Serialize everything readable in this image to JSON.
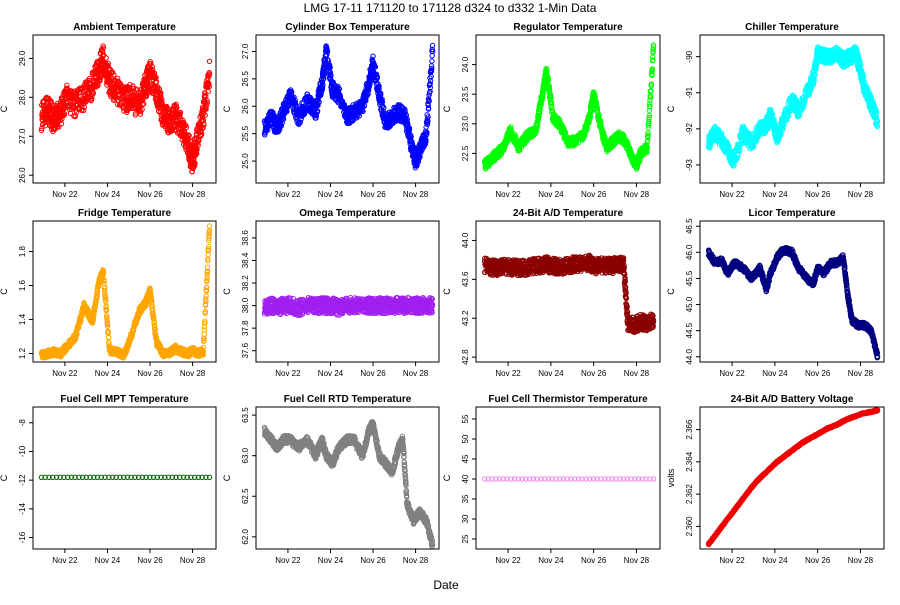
{
  "figure": {
    "title": "LMG   17-11     171120 to 171128     d324 to d332   1-Min Data",
    "xlabel": "Date"
  },
  "chart_data": [
    {
      "type": "scatter",
      "title": "Ambient Temperature",
      "ylabel": "C",
      "color": "#ff0000",
      "ylim": [
        25.8,
        29.6
      ],
      "yticks": [
        "26.0",
        "27.0",
        "28.0",
        "29.0"
      ],
      "yticks_values": [
        26,
        27,
        28,
        29
      ],
      "xticks": [
        "Nov 22",
        "Nov 24",
        "Nov 26",
        "Nov 28"
      ],
      "xticks_days": [
        22,
        24,
        26,
        28
      ],
      "xlim_days": [
        20.5,
        29.1
      ],
      "x_days": [
        20.9,
        21.2,
        21.5,
        21.8,
        22.1,
        22.5,
        22.9,
        23.3,
        23.6,
        23.8,
        24.1,
        24.4,
        24.8,
        25.1,
        25.5,
        25.8,
        26.0,
        26.3,
        26.6,
        26.9,
        27.2,
        27.5,
        27.8,
        28.0,
        28.2,
        28.5,
        28.8
      ],
      "values": [
        27.5,
        27.7,
        27.4,
        27.6,
        28.0,
        27.8,
        28.0,
        28.3,
        28.7,
        29.0,
        28.4,
        28.2,
        27.9,
        28.0,
        27.8,
        28.3,
        28.6,
        28.2,
        27.6,
        27.4,
        27.5,
        27.2,
        26.8,
        26.3,
        26.9,
        27.5,
        28.6
      ],
      "spread": 0.35
    },
    {
      "type": "scatter",
      "title": "Cylinder Box Temperature",
      "ylabel": "C",
      "color": "#0000ff",
      "ylim": [
        24.6,
        27.3
      ],
      "yticks": [
        "25.0",
        "25.5",
        "26.0",
        "26.5",
        "27.0"
      ],
      "yticks_values": [
        25,
        25.5,
        26,
        26.5,
        27
      ],
      "xticks": [
        "Nov 22",
        "Nov 24",
        "Nov 26",
        "Nov 28"
      ],
      "xticks_days": [
        22,
        24,
        26,
        28
      ],
      "xlim_days": [
        20.5,
        29.1
      ],
      "x_days": [
        20.9,
        21.2,
        21.5,
        21.8,
        22.1,
        22.5,
        22.9,
        23.3,
        23.6,
        23.8,
        24.1,
        24.4,
        24.8,
        25.1,
        25.5,
        25.8,
        26.0,
        26.3,
        26.6,
        26.9,
        27.2,
        27.5,
        27.8,
        28.0,
        28.2,
        28.5,
        28.8
      ],
      "values": [
        25.6,
        25.8,
        25.6,
        25.9,
        26.2,
        25.8,
        26.1,
        25.9,
        26.4,
        27.0,
        26.3,
        26.2,
        25.8,
        25.9,
        26.0,
        26.4,
        26.8,
        26.2,
        25.7,
        25.8,
        25.9,
        25.8,
        25.3,
        25.0,
        25.2,
        25.5,
        27.0
      ],
      "spread": 0.15
    },
    {
      "type": "scatter",
      "title": "Regulator Temperature",
      "ylabel": "C",
      "color": "#00ff00",
      "ylim": [
        22.0,
        24.5
      ],
      "yticks": [
        "22.5",
        "23.0",
        "23.5",
        "24.0"
      ],
      "yticks_values": [
        22.5,
        23,
        23.5,
        24
      ],
      "xticks": [
        "Nov 22",
        "Nov 24",
        "Nov 26",
        "Nov 28"
      ],
      "xticks_days": [
        22,
        24,
        26,
        28
      ],
      "xlim_days": [
        20.5,
        29.1
      ],
      "x_days": [
        20.9,
        21.2,
        21.5,
        21.8,
        22.1,
        22.5,
        22.9,
        23.3,
        23.6,
        23.8,
        24.1,
        24.4,
        24.8,
        25.1,
        25.5,
        25.8,
        26.0,
        26.3,
        26.6,
        26.9,
        27.2,
        27.5,
        27.8,
        28.0,
        28.2,
        28.5,
        28.8
      ],
      "values": [
        22.3,
        22.4,
        22.5,
        22.6,
        22.9,
        22.6,
        22.8,
        22.9,
        23.5,
        23.9,
        23.1,
        23.0,
        22.7,
        22.7,
        22.8,
        23.1,
        23.5,
        23.0,
        22.6,
        22.7,
        22.8,
        22.7,
        22.4,
        22.3,
        22.5,
        22.6,
        24.3
      ],
      "spread": 0.08
    },
    {
      "type": "scatter",
      "title": "Chiller Temperature",
      "ylabel": "C",
      "color": "#00ffff",
      "ylim": [
        -93.5,
        -89.4
      ],
      "yticks": [
        "-93",
        "-92",
        "-91",
        "-90"
      ],
      "yticks_values": [
        -93,
        -92,
        -91,
        -90
      ],
      "xticks": [
        "Nov 22",
        "Nov 24",
        "Nov 26",
        "Nov 28"
      ],
      "xticks_days": [
        22,
        24,
        26,
        28
      ],
      "xlim_days": [
        20.5,
        29.1
      ],
      "x_days": [
        20.9,
        21.2,
        21.5,
        21.8,
        22.1,
        22.5,
        22.9,
        23.3,
        23.6,
        23.8,
        24.1,
        24.4,
        24.8,
        25.1,
        25.5,
        25.8,
        26.0,
        26.3,
        26.6,
        26.9,
        27.2,
        27.5,
        27.8,
        28.0,
        28.2,
        28.5,
        28.8
      ],
      "values": [
        -92.4,
        -92.1,
        -92.3,
        -92.6,
        -92.9,
        -92.1,
        -92.4,
        -92.0,
        -91.9,
        -91.6,
        -92.2,
        -91.8,
        -91.2,
        -91.5,
        -91.0,
        -90.6,
        -89.9,
        -90.0,
        -90.0,
        -89.9,
        -90.1,
        -90.0,
        -89.9,
        -90.4,
        -90.9,
        -91.3,
        -91.8
      ],
      "spread": 0.2
    },
    {
      "type": "scatter",
      "title": "Fridge Temperature",
      "ylabel": "C",
      "color": "#ffa500",
      "ylim": [
        1.15,
        1.98
      ],
      "yticks": [
        "1.2",
        "1.4",
        "1.6",
        "1.8"
      ],
      "yticks_values": [
        1.2,
        1.4,
        1.6,
        1.8
      ],
      "xticks": [
        "Nov 22",
        "Nov 24",
        "Nov 26",
        "Nov 28"
      ],
      "xticks_days": [
        22,
        24,
        26,
        28
      ],
      "xlim_days": [
        20.5,
        29.1
      ],
      "x_days": [
        20.9,
        21.2,
        21.5,
        21.8,
        22.1,
        22.5,
        22.9,
        23.3,
        23.6,
        23.8,
        24.1,
        24.4,
        24.8,
        25.1,
        25.5,
        25.8,
        26.0,
        26.3,
        26.6,
        26.9,
        27.2,
        27.5,
        27.8,
        28.0,
        28.2,
        28.5,
        28.8
      ],
      "values": [
        1.19,
        1.2,
        1.21,
        1.2,
        1.24,
        1.3,
        1.48,
        1.39,
        1.62,
        1.68,
        1.22,
        1.21,
        1.19,
        1.3,
        1.45,
        1.5,
        1.57,
        1.27,
        1.2,
        1.2,
        1.23,
        1.21,
        1.2,
        1.22,
        1.2,
        1.21,
        1.95
      ],
      "spread": 0.02
    },
    {
      "type": "scatter",
      "title": "Omega Temperature",
      "ylabel": "C",
      "color": "#a020f0",
      "ylim": [
        37.5,
        38.75
      ],
      "yticks": [
        "37.6",
        "37.8",
        "38.0",
        "38.2",
        "38.4",
        "38.6"
      ],
      "yticks_values": [
        37.6,
        37.8,
        38,
        38.2,
        38.4,
        38.6
      ],
      "xticks": [
        "Nov 22",
        "Nov 24",
        "Nov 26",
        "Nov 28"
      ],
      "xticks_days": [
        22,
        24,
        26,
        28
      ],
      "xlim_days": [
        20.5,
        29.1
      ],
      "x_days": [
        20.9,
        21.2,
        21.5,
        21.8,
        22.1,
        22.5,
        22.9,
        23.3,
        23.6,
        23.8,
        24.1,
        24.4,
        24.8,
        25.1,
        25.5,
        25.8,
        26.0,
        26.3,
        26.6,
        26.9,
        27.2,
        27.5,
        27.8,
        28.0,
        28.2,
        28.5,
        28.8
      ],
      "values": [
        37.98,
        38.0,
        37.98,
        38.0,
        38.0,
        37.98,
        38.0,
        38.0,
        38.0,
        38.0,
        38.0,
        37.98,
        38.0,
        38.0,
        38.0,
        38.0,
        38.0,
        38.0,
        38.0,
        38.0,
        38.0,
        38.0,
        38.0,
        38.0,
        38.0,
        38.0,
        38.0
      ],
      "spread": 0.07
    },
    {
      "type": "scatter",
      "title": "24-Bit A/D Temperature",
      "ylabel": "C",
      "color": "#8b0000",
      "ylim": [
        42.75,
        44.2
      ],
      "yticks": [
        "42.8",
        "43.2",
        "43.6",
        "44.0"
      ],
      "yticks_values": [
        42.8,
        43.2,
        43.6,
        44
      ],
      "xticks": [
        "Nov 22",
        "Nov 24",
        "Nov 26",
        "Nov 28"
      ],
      "xticks_days": [
        22,
        24,
        26,
        28
      ],
      "xlim_days": [
        20.5,
        29.1
      ],
      "x_days": [
        20.9,
        21.2,
        21.5,
        21.8,
        22.1,
        22.5,
        22.9,
        23.3,
        23.6,
        23.8,
        24.1,
        24.4,
        24.8,
        25.1,
        25.5,
        25.8,
        26.0,
        26.3,
        26.6,
        26.9,
        27.2,
        27.4,
        27.6,
        27.9,
        28.2,
        28.5,
        28.8
      ],
      "values": [
        43.75,
        43.72,
        43.72,
        43.74,
        43.72,
        43.72,
        43.72,
        43.74,
        43.74,
        43.75,
        43.74,
        43.73,
        43.74,
        43.76,
        43.76,
        43.77,
        43.73,
        43.74,
        43.74,
        43.74,
        43.75,
        43.74,
        43.15,
        43.13,
        43.16,
        43.15,
        43.18
      ],
      "spread": 0.08
    },
    {
      "type": "scatter",
      "title": "Licor Temperature",
      "ylabel": "C",
      "color": "#000080",
      "ylim": [
        43.9,
        46.6
      ],
      "yticks": [
        "44.0",
        "44.5",
        "45.0",
        "45.5",
        "46.0",
        "46.5"
      ],
      "yticks_values": [
        44,
        44.5,
        45,
        45.5,
        46,
        46.5
      ],
      "xticks": [
        "Nov 22",
        "Nov 24",
        "Nov 26",
        "Nov 28"
      ],
      "xticks_days": [
        22,
        24,
        26,
        28
      ],
      "xlim_days": [
        20.5,
        29.1
      ],
      "x_days": [
        20.9,
        21.2,
        21.5,
        21.8,
        22.1,
        22.5,
        22.9,
        23.3,
        23.6,
        23.8,
        24.1,
        24.4,
        24.8,
        25.1,
        25.5,
        25.8,
        26.0,
        26.3,
        26.6,
        26.9,
        27.2,
        27.4,
        27.6,
        27.9,
        28.2,
        28.5,
        28.8
      ],
      "values": [
        46.0,
        45.8,
        45.85,
        45.6,
        45.8,
        45.7,
        45.5,
        45.7,
        45.3,
        45.6,
        45.9,
        46.05,
        46.0,
        45.7,
        45.5,
        45.4,
        45.7,
        45.6,
        45.8,
        45.8,
        45.9,
        45.2,
        44.7,
        44.6,
        44.6,
        44.5,
        44.0
      ],
      "spread": 0.06
    },
    {
      "type": "scatter",
      "title": "Fuel Cell MPT Temperature",
      "ylabel": "C",
      "color": "#006400",
      "ylim": [
        -16.8,
        -6.9
      ],
      "yticks": [
        "-16",
        "-14",
        "-12",
        "-10",
        "-8"
      ],
      "yticks_values": [
        -16,
        -14,
        -12,
        -10,
        -8
      ],
      "xticks": [
        "Nov 22",
        "Nov 24",
        "Nov 26",
        "Nov 28"
      ],
      "xticks_days": [
        22,
        24,
        26,
        28
      ],
      "xlim_days": [
        20.5,
        29.1
      ],
      "x_days": [
        20.9,
        28.8
      ],
      "values": [
        -11.8,
        -11.8
      ],
      "spread": 0.0
    },
    {
      "type": "scatter",
      "title": "Fuel Cell RTD Temperature",
      "ylabel": "C",
      "color": "#808080",
      "ylim": [
        61.85,
        63.6
      ],
      "yticks": [
        "62.0",
        "62.5",
        "63.0",
        "63.5"
      ],
      "yticks_values": [
        62,
        62.5,
        63,
        63.5
      ],
      "xticks": [
        "Nov 22",
        "Nov 24",
        "Nov 26",
        "Nov 28"
      ],
      "xticks_days": [
        22,
        24,
        26,
        28
      ],
      "xlim_days": [
        20.5,
        29.1
      ],
      "x_days": [
        20.9,
        21.2,
        21.5,
        21.8,
        22.1,
        22.5,
        22.9,
        23.3,
        23.6,
        23.8,
        24.1,
        24.4,
        24.8,
        25.1,
        25.5,
        25.8,
        26.0,
        26.3,
        26.6,
        26.9,
        27.2,
        27.4,
        27.6,
        27.9,
        28.2,
        28.5,
        28.8
      ],
      "values": [
        63.3,
        63.2,
        63.1,
        63.2,
        63.2,
        63.1,
        63.2,
        63.0,
        63.2,
        63.0,
        62.9,
        63.1,
        63.2,
        63.2,
        63.0,
        63.3,
        63.4,
        63.0,
        62.9,
        62.8,
        63.1,
        63.2,
        62.4,
        62.2,
        62.3,
        62.2,
        61.9
      ],
      "spread": 0.05
    },
    {
      "type": "scatter",
      "title": "Fuel Cell Thermistor Temperature",
      "ylabel": "C",
      "color": "#ee82ee",
      "ylim": [
        22.5,
        58.0
      ],
      "yticks": [
        "25",
        "30",
        "35",
        "40",
        "45",
        "50",
        "55"
      ],
      "yticks_values": [
        25,
        30,
        35,
        40,
        45,
        50,
        55
      ],
      "xticks": [
        "Nov 22",
        "Nov 24",
        "Nov 26",
        "Nov 28"
      ],
      "xticks_days": [
        22,
        24,
        26,
        28
      ],
      "xlim_days": [
        20.5,
        29.1
      ],
      "x_days": [
        20.9,
        28.8
      ],
      "values": [
        40,
        40
      ],
      "spread": 0.0
    },
    {
      "type": "scatter",
      "title": "24-Bit A/D Battery Voltage",
      "ylabel": "volts",
      "color": "#ee0000",
      "ylim": [
        2.3586,
        2.3674
      ],
      "yticks": [
        "2.360",
        "2.362",
        "2.364",
        "2.366"
      ],
      "yticks_values": [
        2.36,
        2.362,
        2.364,
        2.366
      ],
      "xticks": [
        "Nov 22",
        "Nov 24",
        "Nov 26",
        "Nov 28"
      ],
      "xticks_days": [
        22,
        24,
        26,
        28
      ],
      "xlim_days": [
        20.5,
        29.1
      ],
      "x_days": [
        20.9,
        21.3,
        21.7,
        22.1,
        22.5,
        22.9,
        23.3,
        23.7,
        24.1,
        24.5,
        24.9,
        25.3,
        25.7,
        26.1,
        26.5,
        26.9,
        27.3,
        27.7,
        28.1,
        28.5,
        28.8
      ],
      "values": [
        2.3589,
        2.3596,
        2.3603,
        2.361,
        2.3617,
        2.3624,
        2.363,
        2.3635,
        2.364,
        2.3644,
        2.3648,
        2.3652,
        2.3655,
        2.3658,
        2.3661,
        2.3663,
        2.3666,
        2.3668,
        2.367,
        2.3671,
        2.3672
      ],
      "spread": 4e-05
    }
  ]
}
